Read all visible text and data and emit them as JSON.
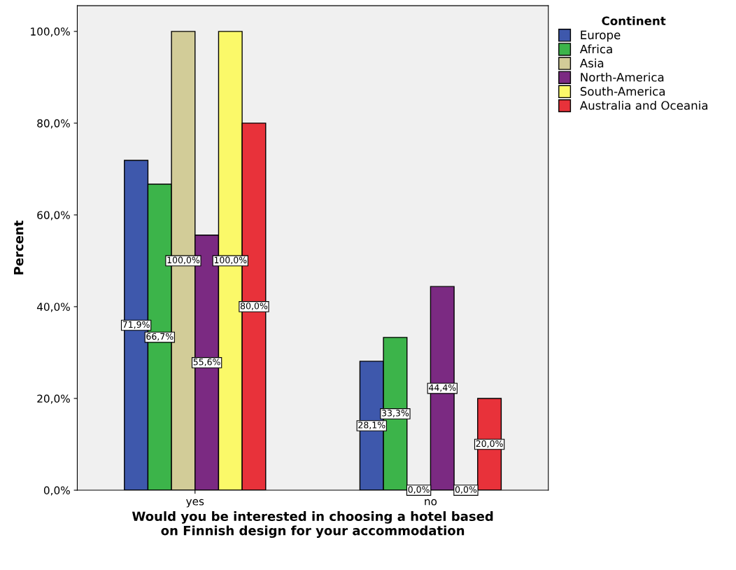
{
  "chart_data": {
    "type": "bar",
    "xlabel": "Would you be interested in choosing a hotel based\non Finnish design for your accommodation",
    "ylabel": "Percent",
    "legend_title": "Continent",
    "legend": "right",
    "grid": false,
    "categories": [
      "yes",
      "no"
    ],
    "ylim": [
      0,
      105.6
    ],
    "yticks": [
      {
        "value": 0,
        "label": "0,0%"
      },
      {
        "value": 20,
        "label": "20,0%"
      },
      {
        "value": 40,
        "label": "40,0%"
      },
      {
        "value": 60,
        "label": "60,0%"
      },
      {
        "value": 80,
        "label": "80,0%"
      },
      {
        "value": 100,
        "label": "100,0%"
      }
    ],
    "series": [
      {
        "name": "Europe",
        "color": "#3e58ac",
        "values": [
          71.9,
          28.1
        ],
        "value_labels": [
          "71,9%",
          "28,1%"
        ]
      },
      {
        "name": "Africa",
        "color": "#3cb44a",
        "values": [
          66.7,
          33.3
        ],
        "value_labels": [
          "66,7%",
          "33,3%"
        ]
      },
      {
        "name": "Asia",
        "color": "#d2cc98",
        "values": [
          100,
          0
        ],
        "value_labels": [
          "100,0%",
          "0,0%"
        ]
      },
      {
        "name": "North-America",
        "color": "#7b2a82",
        "values": [
          55.6,
          44.4
        ],
        "value_labels": [
          "55,6%",
          "44,4%"
        ]
      },
      {
        "name": "South-America",
        "color": "#fbf969",
        "values": [
          100,
          0
        ],
        "value_labels": [
          "100,0%",
          "0,0%"
        ]
      },
      {
        "name": "Australia and Oceania",
        "color": "#e8323a",
        "values": [
          80,
          20
        ],
        "value_labels": [
          "80,0%",
          "20,0%"
        ]
      }
    ]
  }
}
